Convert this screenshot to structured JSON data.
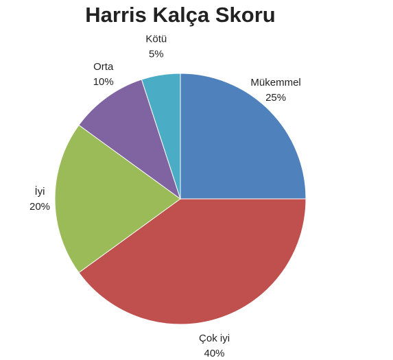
{
  "chart_data": {
    "type": "pie",
    "title": "Harris Kalça Skoru",
    "categories": [
      "Mükemmel",
      "Çok iyi",
      "İyi",
      "Orta",
      "Kötü"
    ],
    "values": [
      25,
      40,
      20,
      10,
      5
    ],
    "value_labels": [
      "25%",
      "40%",
      "20%",
      "10%",
      "5%"
    ],
    "colors": [
      "#4f81bd",
      "#c0504d",
      "#9bbb59",
      "#8064a2",
      "#4bacc6"
    ]
  }
}
